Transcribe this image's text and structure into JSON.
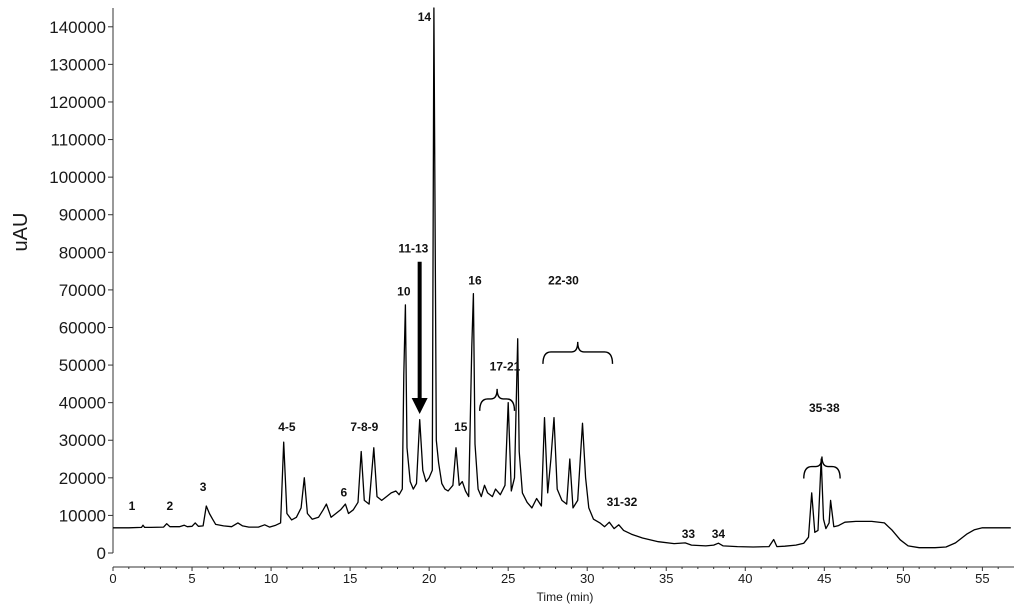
{
  "chart_data": {
    "type": "line",
    "xlabel": "Time (min)",
    "ylabel": "uAU",
    "xlim": [
      0,
      57
    ],
    "ylim": [
      0,
      145000
    ],
    "x_ticks": [
      "0",
      "5",
      "10",
      "15",
      "20",
      "25",
      "30",
      "35",
      "40",
      "45",
      "50",
      "55"
    ],
    "y_ticks": [
      "0",
      "10000",
      "20000",
      "30000",
      "40000",
      "50000",
      "60000",
      "70000",
      "80000",
      "90000",
      "100000",
      "110000",
      "120000",
      "130000",
      "140000"
    ],
    "grid": false,
    "series": [
      {
        "points": [
          [
            0,
            6700
          ],
          [
            1.0,
            6700
          ],
          [
            1.8,
            6800
          ],
          [
            1.9,
            7400
          ],
          [
            2.0,
            6800
          ],
          [
            2.4,
            6800
          ],
          [
            3.2,
            6900
          ],
          [
            3.4,
            7800
          ],
          [
            3.6,
            7000
          ],
          [
            4.2,
            7000
          ],
          [
            4.5,
            7400
          ],
          [
            4.7,
            7000
          ],
          [
            5.0,
            7100
          ],
          [
            5.2,
            8000
          ],
          [
            5.4,
            7100
          ],
          [
            5.7,
            7200
          ],
          [
            5.9,
            12500
          ],
          [
            6.1,
            10500
          ],
          [
            6.3,
            9000
          ],
          [
            6.5,
            7600
          ],
          [
            7.0,
            7200
          ],
          [
            7.5,
            7000
          ],
          [
            7.9,
            8000
          ],
          [
            8.2,
            7200
          ],
          [
            8.6,
            6900
          ],
          [
            9.2,
            6900
          ],
          [
            9.6,
            7500
          ],
          [
            9.9,
            6900
          ],
          [
            10.3,
            7400
          ],
          [
            10.6,
            8000
          ],
          [
            10.8,
            29500
          ],
          [
            11.0,
            10500
          ],
          [
            11.3,
            8800
          ],
          [
            11.6,
            9500
          ],
          [
            11.9,
            12000
          ],
          [
            12.1,
            20000
          ],
          [
            12.3,
            10500
          ],
          [
            12.6,
            9000
          ],
          [
            13.0,
            9500
          ],
          [
            13.3,
            11500
          ],
          [
            13.5,
            13000
          ],
          [
            13.8,
            9500
          ],
          [
            14.1,
            10500
          ],
          [
            14.4,
            11500
          ],
          [
            14.7,
            13000
          ],
          [
            14.9,
            10500
          ],
          [
            15.2,
            11500
          ],
          [
            15.5,
            13500
          ],
          [
            15.7,
            27000
          ],
          [
            15.9,
            14000
          ],
          [
            16.2,
            13000
          ],
          [
            16.5,
            28000
          ],
          [
            16.7,
            15000
          ],
          [
            17.0,
            14000
          ],
          [
            17.3,
            15000
          ],
          [
            17.6,
            16000
          ],
          [
            17.9,
            16500
          ],
          [
            18.1,
            15500
          ],
          [
            18.3,
            17000
          ],
          [
            18.4,
            47500
          ],
          [
            18.5,
            66000
          ],
          [
            18.6,
            28000
          ],
          [
            18.8,
            19000
          ],
          [
            19.0,
            17000
          ],
          [
            19.2,
            18500
          ],
          [
            19.4,
            35500
          ],
          [
            19.6,
            22000
          ],
          [
            19.8,
            19000
          ],
          [
            20.0,
            20000
          ],
          [
            20.2,
            22000
          ],
          [
            20.3,
            145000
          ],
          [
            20.45,
            30000
          ],
          [
            20.6,
            24000
          ],
          [
            20.8,
            18500
          ],
          [
            21.0,
            17000
          ],
          [
            21.2,
            16500
          ],
          [
            21.5,
            18000
          ],
          [
            21.7,
            28000
          ],
          [
            21.9,
            18000
          ],
          [
            22.1,
            19000
          ],
          [
            22.3,
            16500
          ],
          [
            22.5,
            15000
          ],
          [
            22.7,
            55000
          ],
          [
            22.8,
            69000
          ],
          [
            22.9,
            29000
          ],
          [
            23.1,
            17000
          ],
          [
            23.3,
            15000
          ],
          [
            23.5,
            18000
          ],
          [
            23.7,
            16000
          ],
          [
            24.0,
            15000
          ],
          [
            24.2,
            17000
          ],
          [
            24.5,
            15500
          ],
          [
            24.8,
            18000
          ],
          [
            25.0,
            40000
          ],
          [
            25.2,
            16500
          ],
          [
            25.4,
            20000
          ],
          [
            25.6,
            57000
          ],
          [
            25.7,
            27000
          ],
          [
            25.9,
            16000
          ],
          [
            26.2,
            13500
          ],
          [
            26.5,
            12000
          ],
          [
            26.8,
            14500
          ],
          [
            27.1,
            12500
          ],
          [
            27.3,
            36000
          ],
          [
            27.5,
            16000
          ],
          [
            27.7,
            25000
          ],
          [
            27.9,
            36000
          ],
          [
            28.1,
            17000
          ],
          [
            28.4,
            14000
          ],
          [
            28.7,
            13000
          ],
          [
            28.9,
            25000
          ],
          [
            29.1,
            12000
          ],
          [
            29.4,
            14000
          ],
          [
            29.7,
            34500
          ],
          [
            29.9,
            20000
          ],
          [
            30.1,
            12000
          ],
          [
            30.4,
            9000
          ],
          [
            30.8,
            8000
          ],
          [
            31.1,
            7000
          ],
          [
            31.4,
            8200
          ],
          [
            31.7,
            6500
          ],
          [
            32.0,
            7500
          ],
          [
            32.3,
            6000
          ],
          [
            32.8,
            5000
          ],
          [
            33.5,
            4000
          ],
          [
            34.5,
            3000
          ],
          [
            35.5,
            2500
          ],
          [
            36.2,
            2700
          ],
          [
            36.6,
            2100
          ],
          [
            37.5,
            1900
          ],
          [
            38.0,
            2100
          ],
          [
            38.3,
            2600
          ],
          [
            38.6,
            1900
          ],
          [
            39.5,
            1700
          ],
          [
            40.5,
            1600
          ],
          [
            41.5,
            1700
          ],
          [
            41.8,
            3600
          ],
          [
            42.0,
            1700
          ],
          [
            42.5,
            1800
          ],
          [
            43.2,
            2100
          ],
          [
            43.7,
            2600
          ],
          [
            44.0,
            4200
          ],
          [
            44.2,
            16000
          ],
          [
            44.4,
            5500
          ],
          [
            44.6,
            6000
          ],
          [
            44.8,
            25000
          ],
          [
            44.95,
            9000
          ],
          [
            45.1,
            6500
          ],
          [
            45.3,
            8000
          ],
          [
            45.4,
            14000
          ],
          [
            45.6,
            7000
          ],
          [
            45.9,
            7300
          ],
          [
            46.3,
            8200
          ],
          [
            47.0,
            8400
          ],
          [
            48.0,
            8400
          ],
          [
            48.8,
            8000
          ],
          [
            49.3,
            6000
          ],
          [
            49.8,
            3500
          ],
          [
            50.3,
            1900
          ],
          [
            51.0,
            1400
          ],
          [
            52.0,
            1400
          ],
          [
            52.7,
            1600
          ],
          [
            53.3,
            2700
          ],
          [
            54.0,
            5000
          ],
          [
            54.5,
            6200
          ],
          [
            55.0,
            6700
          ],
          [
            56.8,
            6700
          ]
        ]
      }
    ],
    "annotations": [
      {
        "text": "1",
        "x": 1.2,
        "y": 11500
      },
      {
        "text": "2",
        "x": 3.6,
        "y": 11500
      },
      {
        "text": "3",
        "x": 5.7,
        "y": 16500
      },
      {
        "text": "4-5",
        "x": 11.0,
        "y": 32500
      },
      {
        "text": "6",
        "x": 14.6,
        "y": 15000
      },
      {
        "text": "7-8-9",
        "x": 15.9,
        "y": 32500
      },
      {
        "text": "10",
        "x": 18.4,
        "y": 68500
      },
      {
        "text": "11-13",
        "x": 19.0,
        "y": 80000
      },
      {
        "text": "14",
        "x": 19.7,
        "y": 141500
      },
      {
        "text": "15",
        "x": 22.0,
        "y": 32500
      },
      {
        "text": "16",
        "x": 22.9,
        "y": 71500
      },
      {
        "text": "17-21",
        "x": 24.8,
        "y": 48500
      },
      {
        "text": "22-30",
        "x": 28.5,
        "y": 71500
      },
      {
        "text": "31-32",
        "x": 32.2,
        "y": 12500
      },
      {
        "text": "33",
        "x": 36.4,
        "y": 4000
      },
      {
        "text": "34",
        "x": 38.3,
        "y": 4000
      },
      {
        "text": "35-38",
        "x": 45.0,
        "y": 37500
      }
    ],
    "brackets": [
      {
        "x1": 27.2,
        "x2": 31.6,
        "y": 53500
      },
      {
        "x1": 23.2,
        "x2": 25.4,
        "y": 41000
      },
      {
        "x1": 43.7,
        "x2": 46.0,
        "y": 23000
      }
    ],
    "arrow": {
      "x": 19.4,
      "y_from": 77500,
      "y_to": 37500
    }
  }
}
